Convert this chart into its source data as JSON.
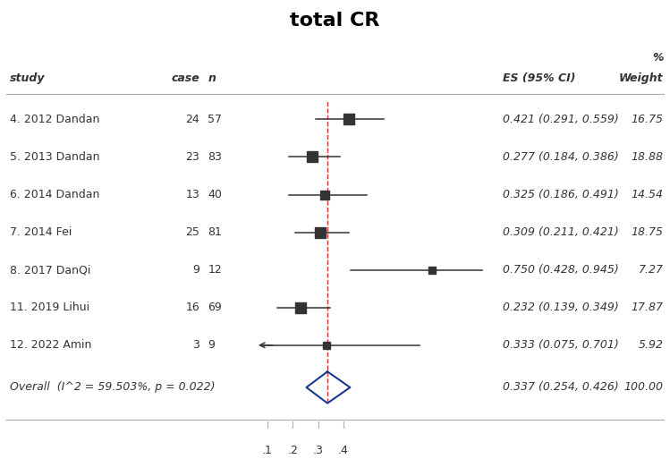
{
  "title": "total CR",
  "studies": [
    {
      "label": "4. 2012 Dandan",
      "case": 24,
      "n": 57,
      "es": 0.421,
      "ci_lo": 0.291,
      "ci_hi": 0.559,
      "weight": 16.75,
      "es_text": "0.421 (0.291, 0.559)",
      "wt_text": "16.75"
    },
    {
      "label": "5. 2013 Dandan",
      "case": 23,
      "n": 83,
      "es": 0.277,
      "ci_lo": 0.184,
      "ci_hi": 0.386,
      "weight": 18.88,
      "es_text": "0.277 (0.184, 0.386)",
      "wt_text": "18.88"
    },
    {
      "label": "6. 2014 Dandan",
      "case": 13,
      "n": 40,
      "es": 0.325,
      "ci_lo": 0.186,
      "ci_hi": 0.491,
      "weight": 14.54,
      "es_text": "0.325 (0.186, 0.491)",
      "wt_text": "14.54"
    },
    {
      "label": "7. 2014 Fei",
      "case": 25,
      "n": 81,
      "es": 0.309,
      "ci_lo": 0.211,
      "ci_hi": 0.421,
      "weight": 18.75,
      "es_text": "0.309 (0.211, 0.421)",
      "wt_text": "18.75"
    },
    {
      "label": "8. 2017 DanQi",
      "case": 9,
      "n": 12,
      "es": 0.75,
      "ci_lo": 0.428,
      "ci_hi": 0.945,
      "weight": 7.27,
      "es_text": "0.750 (0.428, 0.945)",
      "wt_text": "7.27"
    },
    {
      "label": "11. 2019 Lihui",
      "case": 16,
      "n": 69,
      "es": 0.232,
      "ci_lo": 0.139,
      "ci_hi": 0.349,
      "weight": 17.87,
      "es_text": "0.232 (0.139, 0.349)",
      "wt_text": "17.87"
    },
    {
      "label": "12. 2022 Amin",
      "case": 3,
      "n": 9,
      "es": 0.333,
      "ci_lo": 0.075,
      "ci_hi": 0.701,
      "weight": 5.92,
      "es_text": "0.333 (0.075, 0.701)",
      "wt_text": "5.92",
      "arrow_left": true
    }
  ],
  "overall": {
    "label": "Overall  (I^2 = 59.503%, p = 0.022)",
    "es": 0.337,
    "ci_lo": 0.254,
    "ci_hi": 0.426,
    "weight": 100.0,
    "es_text": "0.337 (0.254, 0.426)",
    "wt_text": "100.00"
  },
  "dashed_line_x": 0.337,
  "x_ticks": [
    0.1,
    0.2,
    0.3,
    0.4
  ],
  "x_tick_labels": [
    ".1",
    ".2",
    ".3",
    ".4"
  ],
  "ci_xlim": [
    0.05,
    1.0
  ],
  "header_es": "ES (95% CI)",
  "header_weight": "Weight",
  "header_pct": "%",
  "col_study": "study",
  "col_case": "case",
  "col_n": "n",
  "marker_color": "#333333",
  "ci_color": "#333333",
  "diamond_color": "#1a3a8a",
  "dashed_color": "#cc3333",
  "line_color": "#aaaaaa",
  "text_color": "#333333"
}
